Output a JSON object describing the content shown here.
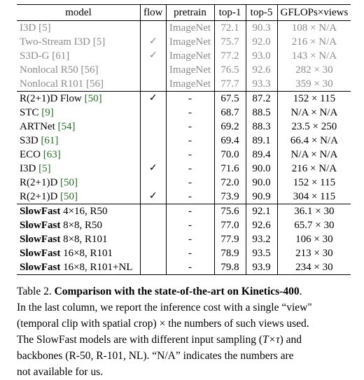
{
  "header": {
    "model": "model",
    "flow": "flow",
    "pretrain": "pretrain",
    "top1": "top-1",
    "top5": "top-5",
    "gflops": "GFLOPs×views"
  },
  "groups": [
    {
      "style": "grey",
      "rows": [
        {
          "model": "I3D",
          "cite": "[5]",
          "flow": "",
          "pretrain": "ImageNet",
          "top1": "72.1",
          "top5": "90.3",
          "gflops": "108 × N/A"
        },
        {
          "model": "Two-Stream I3D",
          "cite": "[5]",
          "flow": "✓",
          "pretrain": "ImageNet",
          "top1": "75.7",
          "top5": "92.0",
          "gflops": "216 × N/A"
        },
        {
          "model": "S3D-G",
          "cite": "[61]",
          "flow": "✓",
          "pretrain": "ImageNet",
          "top1": "77.2",
          "top5": "93.0",
          "gflops": "143 × N/A"
        },
        {
          "model": "Nonlocal R50",
          "cite": "[56]",
          "flow": "",
          "pretrain": "ImageNet",
          "top1": "76.5",
          "top5": "92.6",
          "gflops": "282 × 30"
        },
        {
          "model": "Nonlocal R101",
          "cite": "[56]",
          "flow": "",
          "pretrain": "ImageNet",
          "top1": "77.7",
          "top5": "93.3",
          "gflops": "359 × 30"
        }
      ]
    },
    {
      "style": "normal",
      "rows": [
        {
          "model": "R(2+1)D Flow",
          "cite": "[50]",
          "flow": "✓",
          "pretrain": "-",
          "top1": "67.5",
          "top5": "87.2",
          "gflops": "152 × 115"
        },
        {
          "model": "STC",
          "cite": "[9]",
          "flow": "",
          "pretrain": "-",
          "top1": "68.7",
          "top5": "88.5",
          "gflops": "N/A × N/A"
        },
        {
          "model": "ARTNet",
          "cite": "[54]",
          "flow": "",
          "pretrain": "-",
          "top1": "69.2",
          "top5": "88.3",
          "gflops": "23.5 × 250"
        },
        {
          "model": "S3D",
          "cite": "[61]",
          "flow": "",
          "pretrain": "-",
          "top1": "69.4",
          "top5": "89.1",
          "gflops": "66.4 × N/A"
        },
        {
          "model": "ECO",
          "cite": "[63]",
          "flow": "",
          "pretrain": "-",
          "top1": "70.0",
          "top5": "89.4",
          "gflops": "N/A × N/A"
        },
        {
          "model": "I3D",
          "cite": "[5]",
          "flow": "✓",
          "pretrain": "-",
          "top1": "71.6",
          "top5": "90.0",
          "gflops": "216 × N/A"
        },
        {
          "model": "R(2+1)D",
          "cite": "[50]",
          "flow": "",
          "pretrain": "-",
          "top1": "72.0",
          "top5": "90.0",
          "gflops": "152 × 115"
        },
        {
          "model": "R(2+1)D",
          "cite": "[50]",
          "flow": "✓",
          "pretrain": "-",
          "top1": "73.9",
          "top5": "90.9",
          "gflops": "304 × 115"
        }
      ]
    },
    {
      "style": "slowfast",
      "rows": [
        {
          "model_bold": "SlowFast",
          "model_rest": " 4×16, R50",
          "flow": "",
          "pretrain": "-",
          "top1": "75.6",
          "top5": "92.1",
          "gflops": "36.1 × 30"
        },
        {
          "model_bold": "SlowFast",
          "model_rest": " 8×8, R50",
          "flow": "",
          "pretrain": "-",
          "top1": "77.0",
          "top5": "92.6",
          "gflops": "65.7 × 30"
        },
        {
          "model_bold": "SlowFast",
          "model_rest": " 8×8, R101",
          "flow": "",
          "pretrain": "-",
          "top1": "77.9",
          "top5": "93.2",
          "gflops": "106 × 30"
        },
        {
          "model_bold": "SlowFast",
          "model_rest": " 16×8, R101",
          "flow": "",
          "pretrain": "-",
          "top1": "78.9",
          "top5": "93.5",
          "gflops": "213 × 30"
        },
        {
          "model_bold": "SlowFast",
          "model_rest": " 16×8, R101+NL",
          "flow": "",
          "pretrain": "-",
          "top1": "79.8",
          "top5": "93.9",
          "gflops": "234 × 30",
          "best": true
        }
      ]
    }
  ],
  "caption": {
    "label": "Table 2.",
    "title": "Comparison with the state-of-the-art on Kinetics-400",
    "title_end": ".",
    "line2": "In the last column, we report the inference cost with a single “view\"",
    "line3": "(temporal clip with spatial crop) × the numbers of such views used.",
    "line4a": "The SlowFast models are with different input sampling (",
    "line4b": "T×τ",
    "line4c": ") and",
    "line5": "backbones (R-50, R-101, NL). “N/A” indicates the numbers are",
    "line6": "not available for us."
  }
}
